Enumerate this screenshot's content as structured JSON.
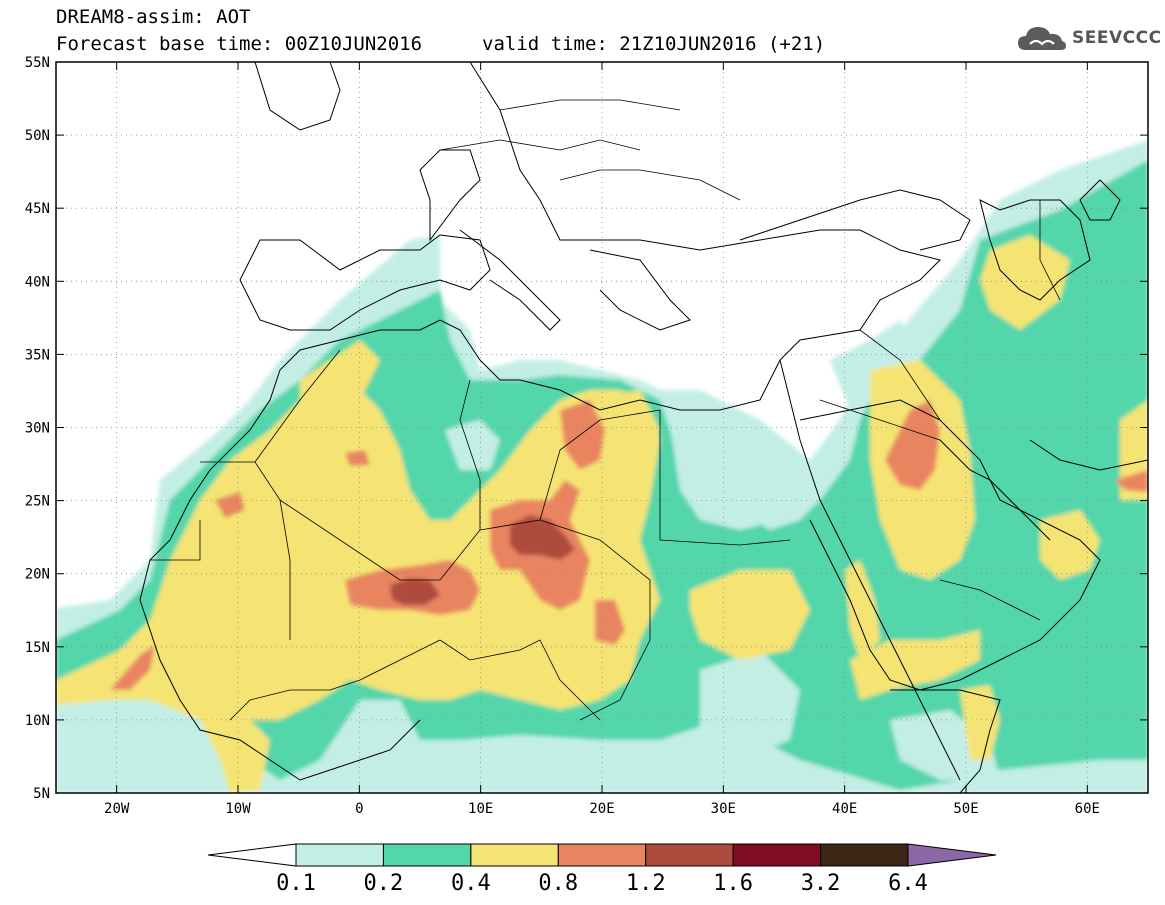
{
  "header": {
    "line1": "DREAM8-assim: AOT",
    "base_time": "Forecast base time: 00Z10JUN2016",
    "valid_time": "valid time: 21Z10JUN2016 (+21)"
  },
  "logo": {
    "icon": "cloud-logo-icon",
    "text": "SEEVCCC"
  },
  "map": {
    "lon_range": [
      -25,
      65
    ],
    "lat_range": [
      5,
      55
    ],
    "lat_ticks": [
      {
        "value": 55,
        "label": "55N"
      },
      {
        "value": 50,
        "label": "50N"
      },
      {
        "value": 45,
        "label": "45N"
      },
      {
        "value": 40,
        "label": "40N"
      },
      {
        "value": 35,
        "label": "35N"
      },
      {
        "value": 30,
        "label": "30N"
      },
      {
        "value": 25,
        "label": "25N"
      },
      {
        "value": 20,
        "label": "20N"
      },
      {
        "value": 15,
        "label": "15N"
      },
      {
        "value": 10,
        "label": "10N"
      },
      {
        "value": 5,
        "label": "5N"
      }
    ],
    "lon_ticks": [
      {
        "value": -20,
        "label": "20W"
      },
      {
        "value": -10,
        "label": "10W"
      },
      {
        "value": 0,
        "label": "0"
      },
      {
        "value": 10,
        "label": "10E"
      },
      {
        "value": 20,
        "label": "20E"
      },
      {
        "value": 30,
        "label": "30E"
      },
      {
        "value": 40,
        "label": "40E"
      },
      {
        "value": 50,
        "label": "50E"
      },
      {
        "value": 60,
        "label": "60E"
      }
    ],
    "grid": true
  },
  "colorbar": {
    "levels": [
      "0.1",
      "0.2",
      "0.4",
      "0.8",
      "1.2",
      "1.6",
      "3.2",
      "6.4"
    ],
    "colors": [
      "#ffffff",
      "#c3eee6",
      "#53d6aa",
      "#f5e473",
      "#e88560",
      "#ae4b3e",
      "#7e0f22",
      "#3d2614",
      "#8c68a9"
    ]
  }
}
